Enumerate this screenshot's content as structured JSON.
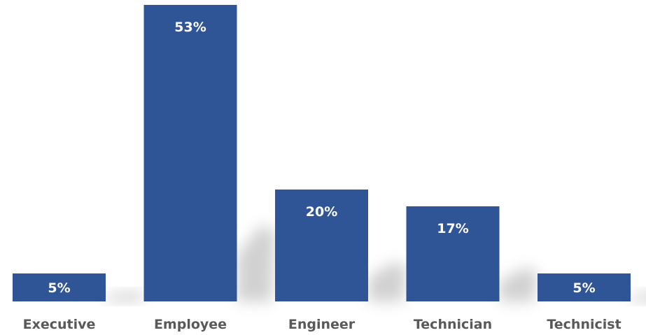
{
  "chart_data": {
    "type": "bar",
    "title": "",
    "xlabel": "",
    "ylabel": "",
    "categories": [
      "Executive",
      "Employee",
      "Engineer",
      "Technician",
      "Technicist"
    ],
    "values": [
      5,
      53,
      20,
      17,
      5
    ],
    "value_labels": [
      "5%",
      "53%",
      "20%",
      "17%",
      "5%"
    ],
    "ylim": [
      0,
      53
    ],
    "grid": false,
    "legend": "none",
    "colors": {
      "bar": "#2f5597",
      "bar_label": "#ffffff",
      "tick_label": "#595959",
      "shadow": "#9a9a9a"
    }
  }
}
